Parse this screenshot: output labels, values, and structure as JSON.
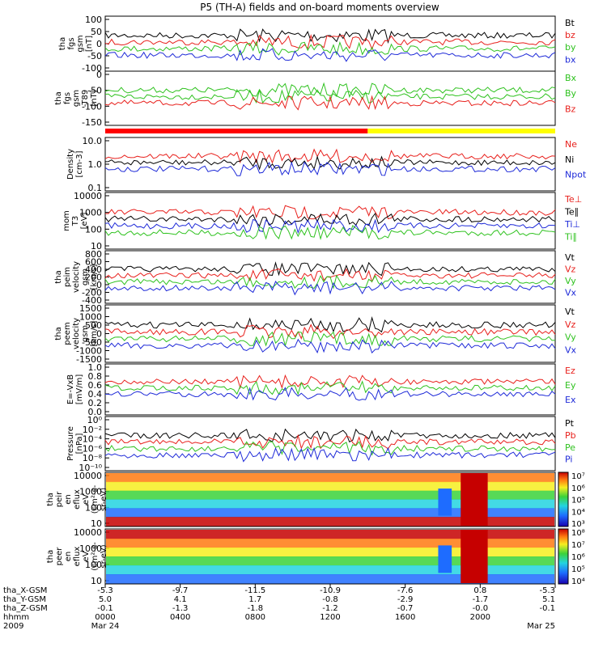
{
  "title": "P5 (TH-A) fields and on-board moments overview",
  "chart_data": [
    {
      "type": "line",
      "ylabel": [
        "tha",
        "fgs",
        "gsm",
        "[nT]"
      ],
      "ylim": [
        -100,
        100
      ],
      "yticks": [
        "100",
        "50",
        "0",
        "-50",
        "-100"
      ],
      "legend": [
        {
          "name": "Bt",
          "color": "#000000"
        },
        {
          "name": "bz",
          "color": "#e8201c"
        },
        {
          "name": "by",
          "color": "#2fc21f"
        },
        {
          "name": "bx",
          "color": "#1e2ad8"
        }
      ]
    },
    {
      "type": "line",
      "ylabel": [
        "tha",
        "fgs",
        "gsm",
        "-T89",
        "[nT]"
      ],
      "ylim": [
        -175,
        25
      ],
      "yticks": [
        "0",
        "-50",
        "-100",
        "-150"
      ],
      "legend": [
        {
          "name": "Bx",
          "color": "#2fc21f"
        },
        {
          "name": "By",
          "color": "#2fc21f"
        },
        {
          "name": "Bz",
          "color": "#e8201c"
        }
      ]
    },
    {
      "type": "bar",
      "description_bar": "mode bar",
      "segments": [
        {
          "from": "0000",
          "to": "1400",
          "color": "#ff0000"
        },
        {
          "from": "1400",
          "to": "2400",
          "color": "#ffff00"
        }
      ]
    },
    {
      "type": "line",
      "ylabel": [
        "Density",
        "[cm-3]"
      ],
      "yscale": "log",
      "yticks": [
        "10.0",
        "1.0",
        "0.1"
      ],
      "legend": [
        {
          "name": "Ne",
          "color": "#e8201c"
        },
        {
          "name": "Ni",
          "color": "#000000"
        },
        {
          "name": "Npot",
          "color": "#1e2ad8"
        }
      ]
    },
    {
      "type": "line",
      "ylabel": [
        "mom",
        "T3",
        "[eV]"
      ],
      "yscale": "log",
      "yticks": [
        "10000",
        "1000",
        "100",
        "10"
      ],
      "legend": [
        {
          "name": "Te⊥",
          "color": "#e8201c"
        },
        {
          "name": "Te∥",
          "color": "#000000"
        },
        {
          "name": "Ti⊥",
          "color": "#1e2ad8"
        },
        {
          "name": "Ti∥",
          "color": "#2fc21f"
        }
      ]
    },
    {
      "type": "line",
      "ylabel": [
        "tha",
        "peim",
        "velocity",
        "gsm",
        "[km/s]"
      ],
      "ylim": [
        -500,
        800
      ],
      "yticks": [
        "800",
        "600",
        "400",
        "200",
        "0",
        "-200",
        "-400"
      ],
      "legend": [
        {
          "name": "Vt",
          "color": "#000000"
        },
        {
          "name": "Vz",
          "color": "#e8201c"
        },
        {
          "name": "Vy",
          "color": "#2fc21f"
        },
        {
          "name": "Vx",
          "color": "#1e2ad8"
        }
      ]
    },
    {
      "type": "line",
      "ylabel": [
        "tha",
        "peem",
        "velocity",
        "gsm",
        "[km/s]"
      ],
      "ylim": [
        -1500,
        1500
      ],
      "yticks": [
        "1500",
        "1000",
        "500",
        "0",
        "-500",
        "-1000",
        "-1500"
      ],
      "legend": [
        {
          "name": "Vt",
          "color": "#000000"
        },
        {
          "name": "Vz",
          "color": "#e8201c"
        },
        {
          "name": "Vy",
          "color": "#2fc21f"
        },
        {
          "name": "Vx",
          "color": "#1e2ad8"
        }
      ]
    },
    {
      "type": "line",
      "ylabel": [
        "E=-VxB",
        "[mV/m]"
      ],
      "ylim": [
        0,
        1
      ],
      "yticks": [
        "1.0",
        "0.8",
        "0.6",
        "0.4",
        "0.2",
        "0.0"
      ],
      "legend": [
        {
          "name": "Ez",
          "color": "#e8201c"
        },
        {
          "name": "Ey",
          "color": "#2fc21f"
        },
        {
          "name": "Ex",
          "color": "#1e2ad8"
        }
      ]
    },
    {
      "type": "line",
      "ylabel": [
        "Pressure",
        "[nPa]"
      ],
      "yscale": "log",
      "yticks": [
        "10⁰",
        "10⁻²",
        "10⁻⁴",
        "10⁻⁶",
        "10⁻⁸",
        "10⁻¹⁰"
      ],
      "legend": [
        {
          "name": "Pt",
          "color": "#000000"
        },
        {
          "name": "Pb",
          "color": "#e8201c"
        },
        {
          "name": "Pe",
          "color": "#2fc21f"
        },
        {
          "name": "Pi",
          "color": "#1e2ad8"
        }
      ]
    },
    {
      "type": "heatmap",
      "ylabel": [
        "tha",
        "peir",
        "en",
        "eflux",
        "eV",
        "(cm²-s-",
        "sr-eV)"
      ],
      "yscale": "log",
      "yticks": [
        "10000",
        "1000",
        "100",
        "10"
      ],
      "colorbar": [
        "10⁷",
        "10⁶",
        "10⁵",
        "10⁴",
        "10³"
      ]
    },
    {
      "type": "heatmap",
      "ylabel": [
        "tha",
        "peer",
        "en",
        "eflux",
        "eV",
        "(cm²-s-",
        "sr-eV)"
      ],
      "yscale": "log",
      "yticks": [
        "10000",
        "1000",
        "100",
        "10"
      ],
      "colorbar": [
        "10⁸",
        "10⁷",
        "10⁶",
        "10⁵",
        "10⁴"
      ]
    }
  ],
  "xaxis": {
    "row_labels": [
      "tha_X-GSM",
      "tha_Y-GSM",
      "tha_Z-GSM",
      "hhmm",
      "2009"
    ],
    "ticks": [
      {
        "x": [
          "-5.3",
          "5.0",
          "-0.1",
          "0000",
          "Mar 24"
        ]
      },
      {
        "x": [
          "-9.7",
          "4.1",
          "-1.3",
          "0400",
          ""
        ]
      },
      {
        "x": [
          "-11.5",
          "1.7",
          "-1.8",
          "0800",
          ""
        ]
      },
      {
        "x": [
          "-10.9",
          "-0.8",
          "-1.2",
          "1200",
          ""
        ]
      },
      {
        "x": [
          "-7.6",
          "-2.9",
          "-0.7",
          "1600",
          ""
        ]
      },
      {
        "x": [
          "0.8",
          "-1.7",
          "-0.0",
          "2000",
          ""
        ]
      },
      {
        "x": [
          "-5.3",
          "5.1",
          "-0.1",
          "",
          "Mar 25"
        ]
      }
    ]
  }
}
